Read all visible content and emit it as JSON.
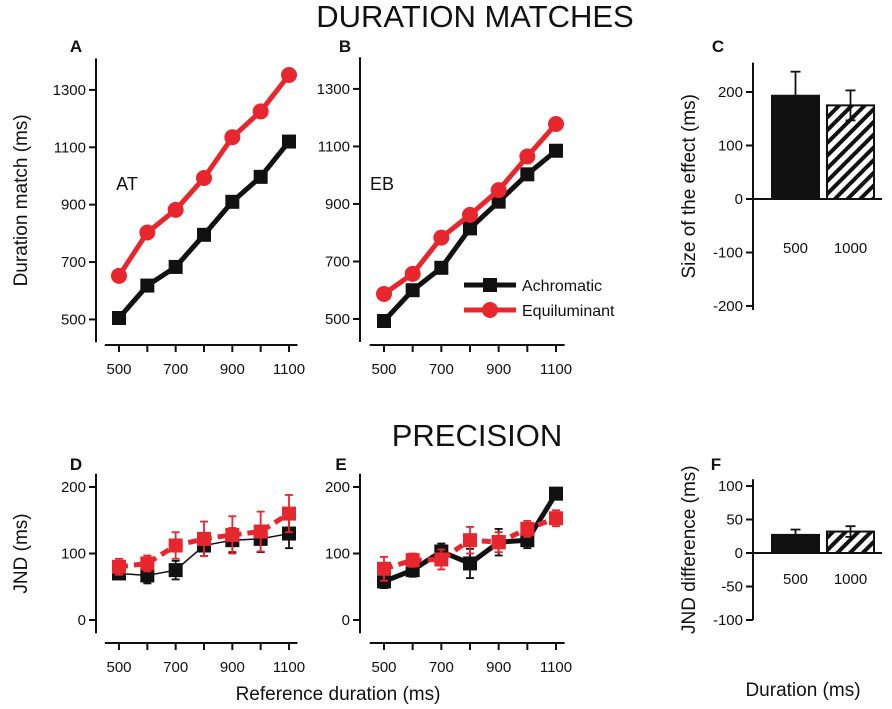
{
  "figure": {
    "section_top": "DURATION MATCHES",
    "section_bottom": "PRECISION",
    "xlabel_shared": "Reference duration (ms)",
    "xlabel_bars": "Duration (ms)"
  },
  "colors": {
    "achromatic": "#111111",
    "equiluminant": "#e8262d"
  },
  "chart_data": [
    {
      "id": "A",
      "panel_label": "A",
      "type": "line",
      "subject_label": "AT",
      "ylabel": "Duration match (ms)",
      "x": [
        500,
        600,
        700,
        800,
        900,
        1000,
        1100
      ],
      "xlim": [
        450,
        1130
      ],
      "ylim": [
        420,
        1410
      ],
      "xticks": [
        500,
        700,
        900,
        1100
      ],
      "yticks": [
        500,
        700,
        900,
        1100,
        1300
      ],
      "series": [
        {
          "name": "Achromatic",
          "values": [
            505,
            618,
            683,
            795,
            910,
            997,
            1120
          ],
          "err": [
            10,
            12,
            12,
            12,
            15,
            12,
            18
          ]
        },
        {
          "name": "Equiluminant",
          "values": [
            652,
            803,
            882,
            993,
            1135,
            1225,
            1352
          ],
          "err": [
            10,
            10,
            12,
            12,
            18,
            12,
            15
          ]
        }
      ]
    },
    {
      "id": "B",
      "panel_label": "B",
      "type": "line",
      "subject_label": "EB",
      "ylabel": "",
      "x": [
        500,
        600,
        700,
        800,
        900,
        1000,
        1100
      ],
      "xlim": [
        450,
        1130
      ],
      "ylim": [
        420,
        1410
      ],
      "xticks": [
        500,
        700,
        900,
        1100
      ],
      "yticks": [
        500,
        700,
        900,
        1100,
        1300
      ],
      "legend": [
        "Achromatic",
        "Equiluminant"
      ],
      "series": [
        {
          "name": "Achromatic",
          "values": [
            493,
            600,
            678,
            815,
            908,
            1003,
            1085
          ],
          "err": [
            8,
            10,
            10,
            10,
            12,
            10,
            12
          ]
        },
        {
          "name": "Equiluminant",
          "values": [
            587,
            657,
            783,
            862,
            948,
            1065,
            1178
          ],
          "err": [
            8,
            10,
            10,
            10,
            12,
            12,
            12
          ]
        }
      ]
    },
    {
      "id": "C",
      "panel_label": "C",
      "type": "bar",
      "ylabel": "Size of the  effect (ms)",
      "categories": [
        "500",
        "1000"
      ],
      "values": [
        193,
        175
      ],
      "err": [
        45,
        28
      ],
      "patterns": [
        "solid",
        "hatched"
      ],
      "ylim": [
        -230,
        255
      ],
      "yticks": [
        -200,
        -100,
        0,
        100,
        200
      ]
    },
    {
      "id": "D",
      "panel_label": "D",
      "type": "line",
      "ylabel": "JND (ms)",
      "x": [
        500,
        600,
        700,
        800,
        900,
        1000,
        1100
      ],
      "xlim": [
        450,
        1130
      ],
      "ylim": [
        -20,
        220
      ],
      "xticks": [
        500,
        700,
        900,
        1100
      ],
      "yticks": [
        0,
        100,
        200
      ],
      "series": [
        {
          "name": "Achromatic",
          "values": [
            70,
            67,
            75,
            112,
            120,
            122,
            130
          ],
          "err": [
            8,
            12,
            14,
            16,
            18,
            20,
            22
          ]
        },
        {
          "name": "Equiluminant",
          "values": [
            80,
            85,
            112,
            122,
            128,
            133,
            160
          ],
          "err": [
            12,
            12,
            20,
            26,
            28,
            30,
            28
          ]
        }
      ]
    },
    {
      "id": "E",
      "panel_label": "E",
      "type": "line",
      "ylabel": "",
      "x": [
        500,
        600,
        700,
        800,
        900,
        1000,
        1100
      ],
      "xlim": [
        450,
        1130
      ],
      "ylim": [
        -20,
        220
      ],
      "xticks": [
        500,
        700,
        900,
        1100
      ],
      "yticks": [
        0,
        100,
        200
      ],
      "series": [
        {
          "name": "Achromatic",
          "values": [
            58,
            75,
            103,
            85,
            117,
            120,
            190
          ],
          "err": [
            10,
            10,
            12,
            22,
            20,
            12,
            6
          ]
        },
        {
          "name": "Equiluminant",
          "values": [
            77,
            90,
            91,
            120,
            117,
            137,
            153
          ],
          "err": [
            18,
            10,
            15,
            20,
            15,
            12,
            12
          ]
        }
      ]
    },
    {
      "id": "F",
      "panel_label": "F",
      "type": "bar",
      "ylabel": "JND difference (ms)",
      "categories": [
        "500",
        "1000"
      ],
      "values": [
        27,
        32
      ],
      "err": [
        8,
        8
      ],
      "patterns": [
        "solid",
        "hatched"
      ],
      "ylim": [
        -115,
        110
      ],
      "yticks": [
        -100,
        -50,
        0,
        50,
        100
      ]
    }
  ]
}
